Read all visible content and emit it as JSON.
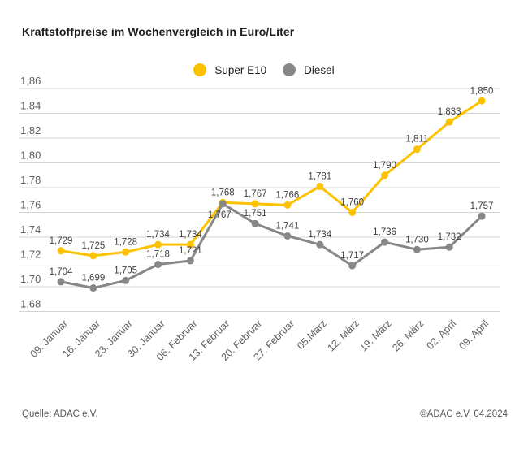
{
  "title": "Kraftstoffpreise im Wochenvergleich in Euro/Liter",
  "footer": {
    "source": "Quelle: ADAC e.V.",
    "copyright": "©ADAC e.V. 04.2024"
  },
  "colors": {
    "super_e10": "#fcc200",
    "diesel": "#878787",
    "gridline": "#d4d4d4",
    "axis_text": "#5f5f5f",
    "point_label_text": "#3f3f3e"
  },
  "chart_data": {
    "type": "line",
    "title": "Kraftstoffpreise im Wochenvergleich in Euro/Liter",
    "xlabel": "",
    "ylabel": "Euro/Liter",
    "ylim": [
      1.68,
      1.86
    ],
    "grid": true,
    "legend_position": "top-center",
    "yticks": [
      {
        "label": "1,86",
        "value": 1.86
      },
      {
        "label": "1,84",
        "value": 1.84
      },
      {
        "label": "1,82",
        "value": 1.82
      },
      {
        "label": "1,80",
        "value": 1.8
      },
      {
        "label": "1,78",
        "value": 1.78
      },
      {
        "label": "1,76",
        "value": 1.76
      },
      {
        "label": "1,74",
        "value": 1.74
      },
      {
        "label": "1,72",
        "value": 1.72
      },
      {
        "label": "1,70",
        "value": 1.7
      },
      {
        "label": "1,68",
        "value": 1.68
      }
    ],
    "categories": [
      "09. Januar",
      "16. Januar",
      "23. Januar",
      "30. Januar",
      "06. Februar",
      "13. Februar",
      "20. Februar",
      "27. Februar",
      "05.März",
      "12. März",
      "19. März",
      "26. März",
      "02. April",
      "09. April"
    ],
    "series": [
      {
        "name": "Super E10",
        "color": "#fcc200",
        "values": [
          1.729,
          1.725,
          1.728,
          1.734,
          1.734,
          1.768,
          1.767,
          1.766,
          1.781,
          1.76,
          1.79,
          1.811,
          1.833,
          1.85
        ],
        "labels": [
          "1,729",
          "1,725",
          "1,728",
          "1,734",
          "1,734",
          "1,768",
          "1,767",
          "1,766",
          "1,781",
          "1,760",
          "1,790",
          "1,811",
          "1,833",
          "1,850"
        ],
        "labels_below": []
      },
      {
        "name": "Diesel",
        "color": "#878787",
        "values": [
          1.704,
          1.699,
          1.705,
          1.718,
          1.721,
          1.767,
          1.751,
          1.741,
          1.734,
          1.717,
          1.736,
          1.73,
          1.732,
          1.757
        ],
        "labels": [
          "1,704",
          "1,699",
          "1,705",
          "1,718",
          "1,721",
          "1,767",
          "1,751",
          "1,741",
          "1,734",
          "1,717",
          "1,736",
          "1,730",
          "1,732",
          "1,757"
        ],
        "labels_below": [
          5
        ]
      }
    ]
  }
}
